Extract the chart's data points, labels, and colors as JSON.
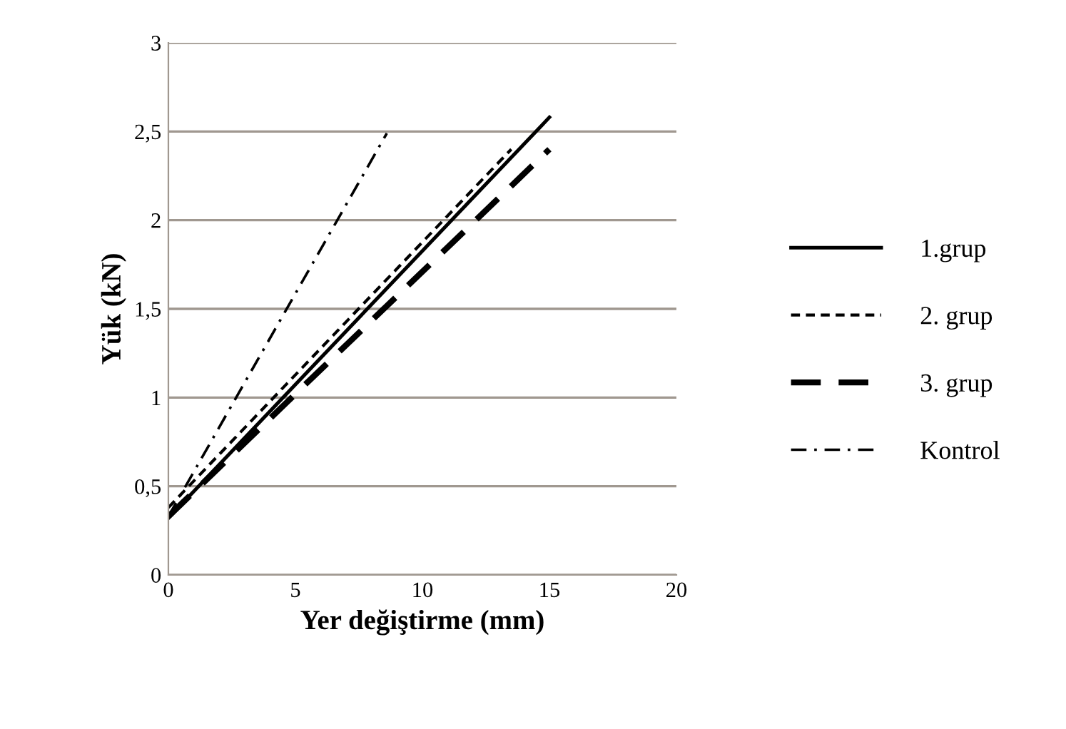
{
  "chart_data": {
    "type": "line",
    "xlabel": "Yer değiştirme (mm)",
    "ylabel": "Yük (kN)",
    "xlim": [
      0,
      20
    ],
    "xticks": [
      0,
      5,
      10,
      15,
      20
    ],
    "ylim": [
      0,
      3
    ],
    "yticks": [
      0,
      {
        "value": 0.5,
        "label": "0,5"
      },
      1,
      {
        "value": 1.5,
        "label": "1,5"
      },
      2,
      {
        "value": 2.5,
        "label": "2,5"
      },
      3
    ],
    "grid": "y",
    "legend": "right",
    "marker": "none",
    "series": [
      {
        "name": "1.grup",
        "color": "#000000",
        "line_style": "solid",
        "x": [
          0,
          15
        ],
        "values": [
          0.32,
          2.58
        ]
      },
      {
        "name": "2. grup",
        "color": "#000000",
        "line_style": "dashed",
        "x": [
          0,
          13.5
        ],
        "values": [
          0.38,
          2.4
        ]
      },
      {
        "name": "3. grup",
        "color": "#000000",
        "line_style": "long dashed",
        "x": [
          0,
          15
        ],
        "values": [
          0.33,
          2.4
        ]
      },
      {
        "name": "Kontrol",
        "color": "#000000",
        "line_style": "dashdot",
        "x": [
          0,
          8.6
        ],
        "values": [
          0.33,
          2.49
        ]
      }
    ]
  }
}
